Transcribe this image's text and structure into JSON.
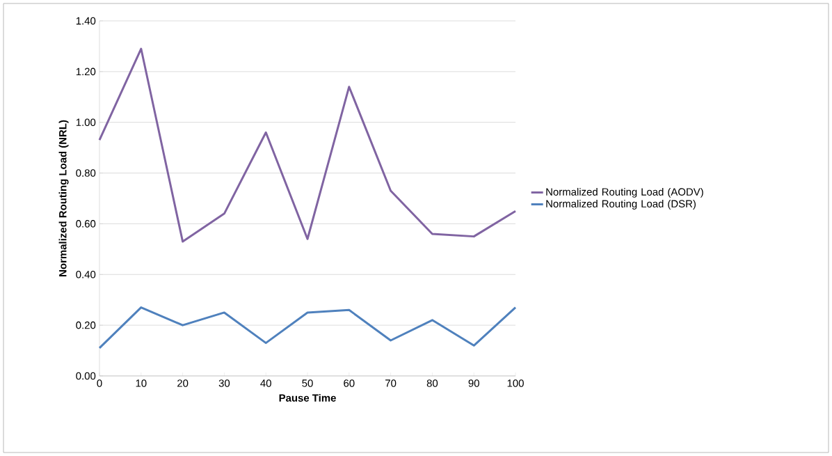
{
  "chart_data": {
    "type": "line",
    "xlabel": "Pause Time",
    "ylabel": "Normalized Routing Load (NRL)",
    "categories": [
      "0",
      "10",
      "20",
      "30",
      "40",
      "50",
      "60",
      "70",
      "80",
      "90",
      "100"
    ],
    "series": [
      {
        "name": "Normalized Routing Load (AODV)",
        "color": "#8064a2",
        "values": [
          0.93,
          1.29,
          0.53,
          0.64,
          0.96,
          0.54,
          1.14,
          0.73,
          0.56,
          0.55,
          0.65
        ]
      },
      {
        "name": "Normalized Routing Load (DSR)",
        "color": "#4f81bd",
        "values": [
          0.11,
          0.27,
          0.2,
          0.25,
          0.13,
          0.25,
          0.26,
          0.14,
          0.22,
          0.12,
          0.27
        ]
      }
    ],
    "ylim": [
      0,
      1.4
    ],
    "yticks": [
      {
        "value": 0,
        "label": "0.00"
      },
      {
        "value": 0.2,
        "label": "0.20"
      },
      {
        "value": 0.4,
        "label": "0.40"
      },
      {
        "value": 0.6,
        "label": "0.60"
      },
      {
        "value": 0.8,
        "label": "0.80"
      },
      {
        "value": 1.0,
        "label": "1.00"
      },
      {
        "value": 1.2,
        "label": "1.20"
      },
      {
        "value": 1.4,
        "label": "1.40"
      }
    ],
    "grid": "y",
    "legend": "right",
    "marker": "none",
    "line_style": "solid"
  }
}
